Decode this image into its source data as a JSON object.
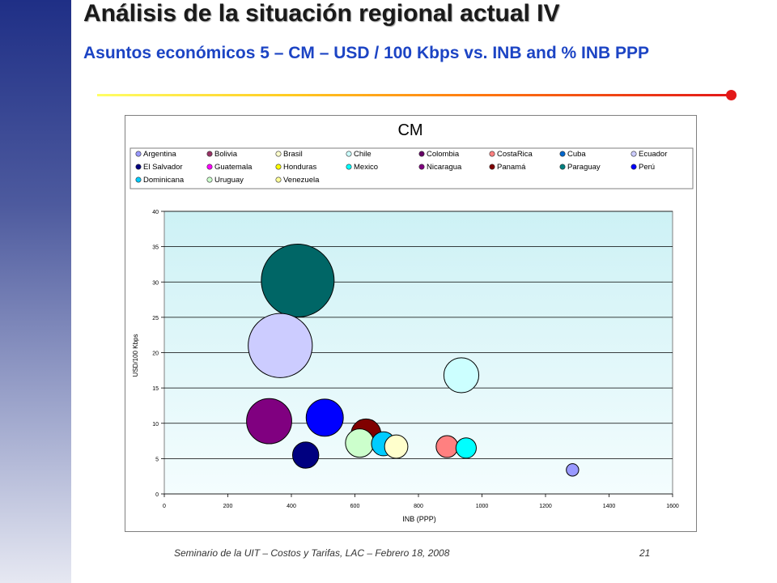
{
  "slide": {
    "title": "Análisis de la situación regional actual IV",
    "subtitle": "Asuntos económicos 5 – CM – USD / 100 Kbps vs. INB and % INB PPP",
    "footer": "Seminario de la UIT – Costos y Tarifas, LAC – Febrero 18, 2008",
    "page_number": "21"
  },
  "chart_data": {
    "type": "bubble",
    "title": "CM",
    "xlabel": "INB (PPP)",
    "ylabel": "USD/100 Kbps",
    "xlim": [
      0,
      1600
    ],
    "ylim": [
      0,
      40
    ],
    "xticks": [
      0,
      200,
      400,
      600,
      800,
      1000,
      1200,
      1400,
      1600
    ],
    "yticks": [
      0,
      5,
      10,
      15,
      20,
      25,
      30,
      35,
      40
    ],
    "grid": "horizontal",
    "legend_position": "top",
    "legend": [
      {
        "name": "Argentina",
        "color": "#9999ff"
      },
      {
        "name": "Bolivia",
        "color": "#993366"
      },
      {
        "name": "Brasil",
        "color": "#ffffcc"
      },
      {
        "name": "Chile",
        "color": "#ccffff"
      },
      {
        "name": "Colombia",
        "color": "#660066"
      },
      {
        "name": "CostaRica",
        "color": "#ff8080"
      },
      {
        "name": "Cuba",
        "color": "#0066cc"
      },
      {
        "name": "Ecuador",
        "color": "#ccccff"
      },
      {
        "name": "El Salvador",
        "color": "#000080"
      },
      {
        "name": "Guatemala",
        "color": "#ff00ff"
      },
      {
        "name": "Honduras",
        "color": "#ffff00"
      },
      {
        "name": "Mexico",
        "color": "#00ffff"
      },
      {
        "name": "Nicaragua",
        "color": "#800080"
      },
      {
        "name": "Panamá",
        "color": "#800000"
      },
      {
        "name": "Paraguay",
        "color": "#008080"
      },
      {
        "name": "Perú",
        "color": "#0000ff"
      },
      {
        "name": "Dominicana",
        "color": "#00ccff"
      },
      {
        "name": "Uruguay",
        "color": "#ccffcc"
      },
      {
        "name": "Venezuela",
        "color": "#ffff99"
      }
    ],
    "bubbles": [
      {
        "x": 420,
        "y": 30.2,
        "size": 1.0,
        "color": "#006666"
      },
      {
        "x": 365,
        "y": 21.0,
        "size": 0.88,
        "color": "#ccccff"
      },
      {
        "x": 935,
        "y": 16.8,
        "size": 0.48,
        "color": "#ccffff"
      },
      {
        "x": 330,
        "y": 10.3,
        "size": 0.62,
        "color": "#800080"
      },
      {
        "x": 505,
        "y": 10.8,
        "size": 0.51,
        "color": "#0000ff"
      },
      {
        "x": 635,
        "y": 8.5,
        "size": 0.41,
        "color": "#800000"
      },
      {
        "x": 615,
        "y": 7.2,
        "size": 0.39,
        "color": "#ccffcc"
      },
      {
        "x": 730,
        "y": 6.7,
        "size": 0.32,
        "color": "#ffffcc"
      },
      {
        "x": 690,
        "y": 7.1,
        "size": 0.33,
        "color": "#00ccff"
      },
      {
        "x": 890,
        "y": 6.7,
        "size": 0.3,
        "color": "#ff8080"
      },
      {
        "x": 950,
        "y": 6.5,
        "size": 0.28,
        "color": "#00ffff"
      },
      {
        "x": 445,
        "y": 5.5,
        "size": 0.36,
        "color": "#000080"
      },
      {
        "x": 1285,
        "y": 3.4,
        "size": 0.17,
        "color": "#9999ff"
      }
    ]
  }
}
